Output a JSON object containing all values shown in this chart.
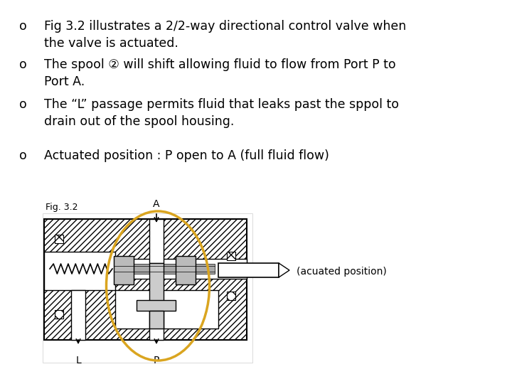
{
  "background_color": "#ffffff",
  "bullet_color": "#000000",
  "bullet_char": "o",
  "bullets": [
    "Fig 3.2 illustrates a 2/2-way directional control valve when\nthe valve is actuated.",
    "The spool ② will shift allowing fluid to flow from Port P to\nPort A.",
    "The “L” passage permits fluid that leaks past the sppol to\ndrain out of the spool housing."
  ],
  "bullet4": "Actuated position : P open to A (full fluid flow)",
  "fig_label": "Fig. 3.2",
  "actuated_label": "(acuated position)",
  "port_A": "A",
  "port_L": "L",
  "port_P": "P",
  "ellipse_color": "#DAA520",
  "font_family": "sans-serif"
}
